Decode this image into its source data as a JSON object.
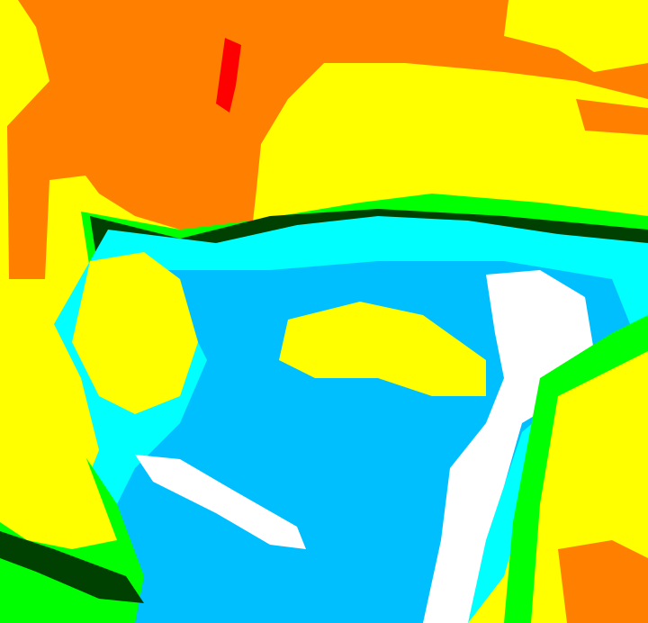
{
  "image": {
    "kind": "color-classified satellite image",
    "palette": {
      "red": "#ff0000",
      "orange": "#ff8000",
      "yellow": "#ffff00",
      "green": "#00ff00",
      "dark_green": "#004000",
      "cyan": "#00ffff",
      "light_blue": "#00bfff",
      "white": "#ffffff"
    }
  }
}
